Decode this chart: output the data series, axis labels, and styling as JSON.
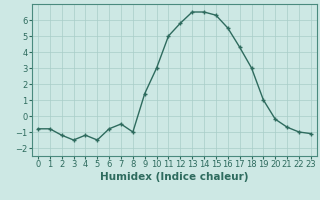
{
  "x": [
    0,
    1,
    2,
    3,
    4,
    5,
    6,
    7,
    8,
    9,
    10,
    11,
    12,
    13,
    14,
    15,
    16,
    17,
    18,
    19,
    20,
    21,
    22,
    23
  ],
  "y": [
    -0.8,
    -0.8,
    -1.2,
    -1.5,
    -1.2,
    -1.5,
    -0.8,
    -0.5,
    -1.0,
    1.4,
    3.0,
    5.0,
    5.8,
    6.5,
    6.5,
    6.3,
    5.5,
    4.3,
    3.0,
    1.0,
    -0.2,
    -0.7,
    -1.0,
    -1.1
  ],
  "line_color": "#2e6b5e",
  "marker": "+",
  "bg_color": "#cde8e4",
  "grid_color": "#a8cdc8",
  "xlabel": "Humidex (Indice chaleur)",
  "ylim": [
    -2.5,
    7.0
  ],
  "xlim": [
    -0.5,
    23.5
  ],
  "yticks": [
    -2,
    -1,
    0,
    1,
    2,
    3,
    4,
    5,
    6
  ],
  "xticks": [
    0,
    1,
    2,
    3,
    4,
    5,
    6,
    7,
    8,
    9,
    10,
    11,
    12,
    13,
    14,
    15,
    16,
    17,
    18,
    19,
    20,
    21,
    22,
    23
  ],
  "tick_fontsize": 6,
  "xlabel_fontsize": 7.5,
  "line_width": 1.0,
  "marker_size": 3.5,
  "marker_edge_width": 1.0
}
